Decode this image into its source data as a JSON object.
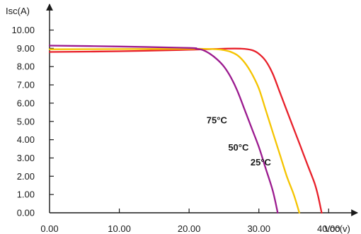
{
  "chart_data": {
    "type": "line",
    "title": "",
    "xlabel": "Voc(v)",
    "ylabel": "Isc(A)",
    "xlim": [
      0,
      42
    ],
    "ylim": [
      0,
      10.6
    ],
    "x_ticks": [
      0,
      10,
      20,
      30,
      40
    ],
    "x_tick_labels": [
      "0.00",
      "10.00",
      "20.00",
      "30.00",
      "40.00"
    ],
    "y_ticks": [
      0,
      1,
      2,
      3,
      4,
      5,
      6,
      7,
      8,
      9,
      10
    ],
    "y_tick_labels": [
      "0.00",
      "1.00",
      "2.00",
      "3.00",
      "4.00",
      "5.00",
      "6.00",
      "7.00",
      "8.00",
      "9.00",
      "10.00"
    ],
    "grid": false,
    "legend": "none",
    "series": [
      {
        "name": "25°C",
        "color": "#e8202a",
        "label_at": [
          28.8,
          2.6
        ],
        "points": [
          [
            0,
            8.8
          ],
          [
            10,
            8.84
          ],
          [
            20,
            8.92
          ],
          [
            25,
            8.98
          ],
          [
            27.5,
            8.98
          ],
          [
            29,
            8.9
          ],
          [
            30,
            8.7
          ],
          [
            31,
            8.3
          ],
          [
            32,
            7.6
          ],
          [
            33,
            6.6
          ],
          [
            34,
            5.6
          ],
          [
            35,
            4.6
          ],
          [
            36,
            3.6
          ],
          [
            37,
            2.6
          ],
          [
            38,
            1.6
          ],
          [
            38.5,
            0.9
          ],
          [
            39,
            0
          ]
        ]
      },
      {
        "name": "50°C",
        "color": "#f5c400",
        "label_at": [
          25.6,
          3.4
        ],
        "points": [
          [
            0,
            8.95
          ],
          [
            10,
            8.96
          ],
          [
            20,
            8.97
          ],
          [
            22,
            8.97
          ],
          [
            24,
            8.95
          ],
          [
            25,
            8.9
          ],
          [
            26,
            8.8
          ],
          [
            27,
            8.6
          ],
          [
            28,
            8.2
          ],
          [
            29,
            7.6
          ],
          [
            30,
            6.8
          ],
          [
            31,
            5.6
          ],
          [
            32,
            4.4
          ],
          [
            33,
            3.2
          ],
          [
            34,
            2.0
          ],
          [
            35,
            1.0
          ],
          [
            35.8,
            0
          ]
        ]
      },
      {
        "name": "75°C",
        "color": "#9b1a8f",
        "label_at": [
          22.5,
          4.9
        ],
        "points": [
          [
            0,
            9.15
          ],
          [
            10,
            9.1
          ],
          [
            20,
            9.02
          ],
          [
            21,
            8.98
          ],
          [
            22,
            8.9
          ],
          [
            23,
            8.7
          ],
          [
            24,
            8.4
          ],
          [
            25,
            8.0
          ],
          [
            26,
            7.4
          ],
          [
            27,
            6.6
          ],
          [
            28,
            5.6
          ],
          [
            29,
            4.6
          ],
          [
            30,
            3.6
          ],
          [
            31,
            2.4
          ],
          [
            32,
            1.2
          ],
          [
            32.7,
            0
          ]
        ]
      }
    ]
  }
}
